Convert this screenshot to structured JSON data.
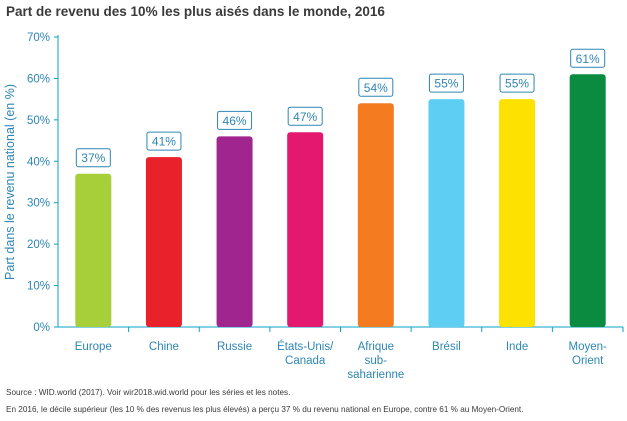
{
  "chart_data": {
    "type": "bar",
    "title": "Part de revenu des 10% les plus aisés dans le monde, 2016",
    "ylabel": "Part dans le revenu national (en %)",
    "xlabel": "",
    "ylim": [
      0,
      70
    ],
    "y_ticks": [
      "0%",
      "10%",
      "20%",
      "30%",
      "40%",
      "50%",
      "60%",
      "70%"
    ],
    "grid": false,
    "categories": [
      [
        "Europe"
      ],
      [
        "Chine"
      ],
      [
        "Russie"
      ],
      [
        "États-Unis/",
        "Canada"
      ],
      [
        "Afrique",
        "sub-",
        "saharienne"
      ],
      [
        "Brésil"
      ],
      [
        "Inde"
      ],
      [
        "Moyen-",
        "Orient"
      ]
    ],
    "values": [
      37,
      41,
      46,
      47,
      54,
      55,
      55,
      61
    ],
    "data_labels": [
      "37%",
      "41%",
      "46%",
      "47%",
      "54%",
      "55%",
      "55%",
      "61%"
    ],
    "colors": [
      "#a6cf3a",
      "#e8212b",
      "#a1258f",
      "#e4186e",
      "#f47b20",
      "#5ecff2",
      "#fde100",
      "#0a8b3f"
    ],
    "axis_color": "#0da0c8",
    "label_color": "#2d86b4"
  },
  "footer": {
    "source": "Source : WID.world (2017). Voir wir2018.wid.world pour les séries et les notes.",
    "note": "En 2016, le décile supérieur (les 10 % des revenus les plus élevés) a perçu 37 % du revenu national en Europe, contre 61 % au Moyen-Orient."
  }
}
